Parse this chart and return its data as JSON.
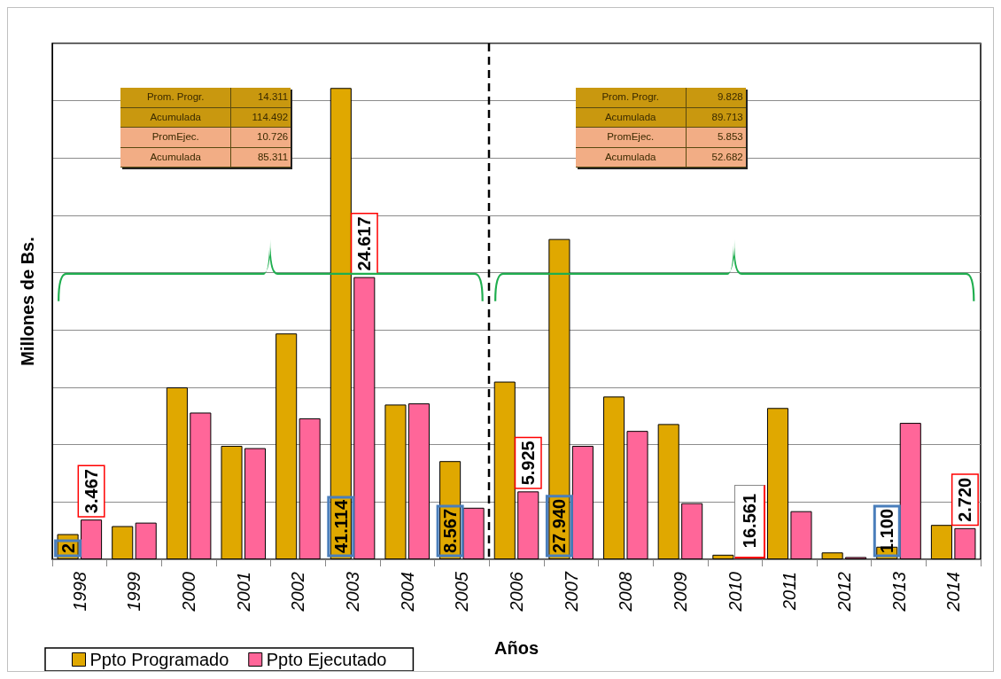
{
  "chart_data": {
    "type": "bar",
    "xlabel": "Años",
    "ylabel": "Millones de Bs.",
    "categories": [
      "1998",
      "1999",
      "2000",
      "2001",
      "2002",
      "2003",
      "2004",
      "2005",
      "2006",
      "2007",
      "2008",
      "2009",
      "2010",
      "2011",
      "2012",
      "2013",
      "2014"
    ],
    "series": [
      {
        "name": "Ppto Programado",
        "color": "#e0a800",
        "values": [
          2.2,
          2.9,
          15.0,
          9.9,
          19.7,
          41.114,
          13.5,
          8.567,
          15.5,
          27.94,
          14.2,
          11.8,
          0.4,
          13.2,
          0.6,
          1.1,
          3.0
        ],
        "value_labels": [
          "2",
          null,
          null,
          null,
          null,
          "41.114",
          null,
          "8.567",
          null,
          "27.940",
          null,
          null,
          null,
          null,
          null,
          "1.100",
          null
        ]
      },
      {
        "name": "Ppto Ejecutado",
        "color": "#ff6699",
        "values": [
          3.467,
          3.2,
          12.8,
          9.7,
          12.3,
          24.617,
          13.6,
          4.5,
          5.925,
          9.9,
          11.2,
          4.9,
          null,
          4.2,
          0.2,
          11.9,
          2.72
        ],
        "value_labels": [
          "3.467",
          null,
          null,
          null,
          null,
          "24.617",
          null,
          null,
          "5.925",
          null,
          null,
          null,
          null,
          null,
          null,
          null,
          "2.720"
        ]
      }
    ],
    "ylim": [
      0,
      45
    ],
    "yticks": [
      {
        "value": 0,
        "label": null
      },
      {
        "value": 5,
        "label": null
      },
      {
        "value": 10,
        "label": null
      },
      {
        "value": 15,
        "label": null
      },
      {
        "value": 20,
        "label": null
      },
      {
        "value": 25,
        "label": null
      },
      {
        "value": 30,
        "label": null
      },
      {
        "value": 35,
        "label": null
      },
      {
        "value": 40,
        "label": null
      },
      {
        "value": 45,
        "label": null
      }
    ],
    "tick_labels": "x",
    "grid": "y",
    "legend": "bottom left",
    "annotations": [
      "Prom. Progr.",
      "14.311",
      "Acumulada",
      "114.492",
      "PromEjec.",
      "10.726",
      "Acumulada",
      "85.311",
      "Prom. Progr.",
      "9.828",
      "Acumulada",
      "89.713",
      "PromEjec.",
      "5.853",
      "Acumulada",
      "52.682",
      "16.561"
    ]
  }
}
